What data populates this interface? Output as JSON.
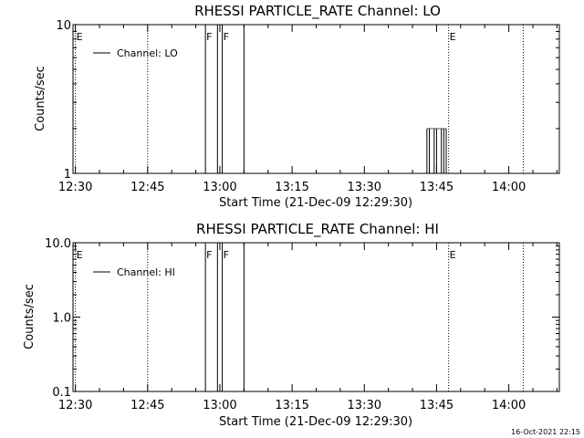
{
  "timestamp": "16-Oct-2021 22:15",
  "chart_data": [
    {
      "type": "line",
      "title": "RHESSI PARTICLE_RATE Channel: LO",
      "xlabel": "Start Time (21-Dec-09 12:29:30)",
      "ylabel": "Counts/sec",
      "y_scale": "log",
      "ylim": [
        1,
        10
      ],
      "y_ticks": [
        {
          "value": 1,
          "label": "1"
        },
        {
          "value": 10,
          "label": "10"
        }
      ],
      "xlim": [
        "12:29:30",
        "14:10:30"
      ],
      "x_ticks": [
        "12:30",
        "12:45",
        "13:00",
        "13:15",
        "13:30",
        "13:45",
        "14:00"
      ],
      "legend": "top-left",
      "series": [
        {
          "name": "Channel: LO",
          "points": [
            {
              "x": "13:43",
              "y": 2
            },
            {
              "x": "13:43.5",
              "y": 2
            },
            {
              "x": "13:44.5",
              "y": 2
            },
            {
              "x": "13:45",
              "y": 2
            },
            {
              "x": "13:46",
              "y": 2
            },
            {
              "x": "13:46.5",
              "y": 2
            },
            {
              "x": "13:47",
              "y": 2
            }
          ]
        }
      ],
      "markers": [
        {
          "x": "12:30",
          "label": "E",
          "style": "dotted"
        },
        {
          "x": "12:45",
          "label": "",
          "style": "dotted"
        },
        {
          "x": "12:57",
          "label": "F",
          "style": "solid"
        },
        {
          "x": "12:59.5",
          "label": "",
          "style": "solid"
        },
        {
          "x": "13:00.5",
          "label": "F",
          "style": "solid"
        },
        {
          "x": "13:05",
          "label": "",
          "style": "solid"
        },
        {
          "x": "13:47.5",
          "label": "E",
          "style": "dotted"
        },
        {
          "x": "14:03",
          "label": "",
          "style": "dotted"
        }
      ]
    },
    {
      "type": "line",
      "title": "RHESSI PARTICLE_RATE Channel: HI",
      "xlabel": "Start Time (21-Dec-09 12:29:30)",
      "ylabel": "Counts/sec",
      "y_scale": "log",
      "ylim": [
        0.1,
        10
      ],
      "y_ticks": [
        {
          "value": 0.1,
          "label": "0.1"
        },
        {
          "value": 1,
          "label": "1.0"
        },
        {
          "value": 10,
          "label": "10.0"
        }
      ],
      "xlim": [
        "12:29:30",
        "14:10:30"
      ],
      "x_ticks": [
        "12:30",
        "12:45",
        "13:00",
        "13:15",
        "13:30",
        "13:45",
        "14:00"
      ],
      "legend": "top-left",
      "series": [
        {
          "name": "Channel: HI",
          "points": []
        }
      ],
      "markers": [
        {
          "x": "12:30",
          "label": "E",
          "style": "dotted"
        },
        {
          "x": "12:45",
          "label": "",
          "style": "dotted"
        },
        {
          "x": "12:57",
          "label": "F",
          "style": "solid"
        },
        {
          "x": "12:59.5",
          "label": "",
          "style": "solid"
        },
        {
          "x": "13:00.5",
          "label": "F",
          "style": "solid"
        },
        {
          "x": "13:05",
          "label": "",
          "style": "solid"
        },
        {
          "x": "13:47.5",
          "label": "E",
          "style": "dotted"
        },
        {
          "x": "14:03",
          "label": "",
          "style": "dotted"
        }
      ]
    }
  ]
}
